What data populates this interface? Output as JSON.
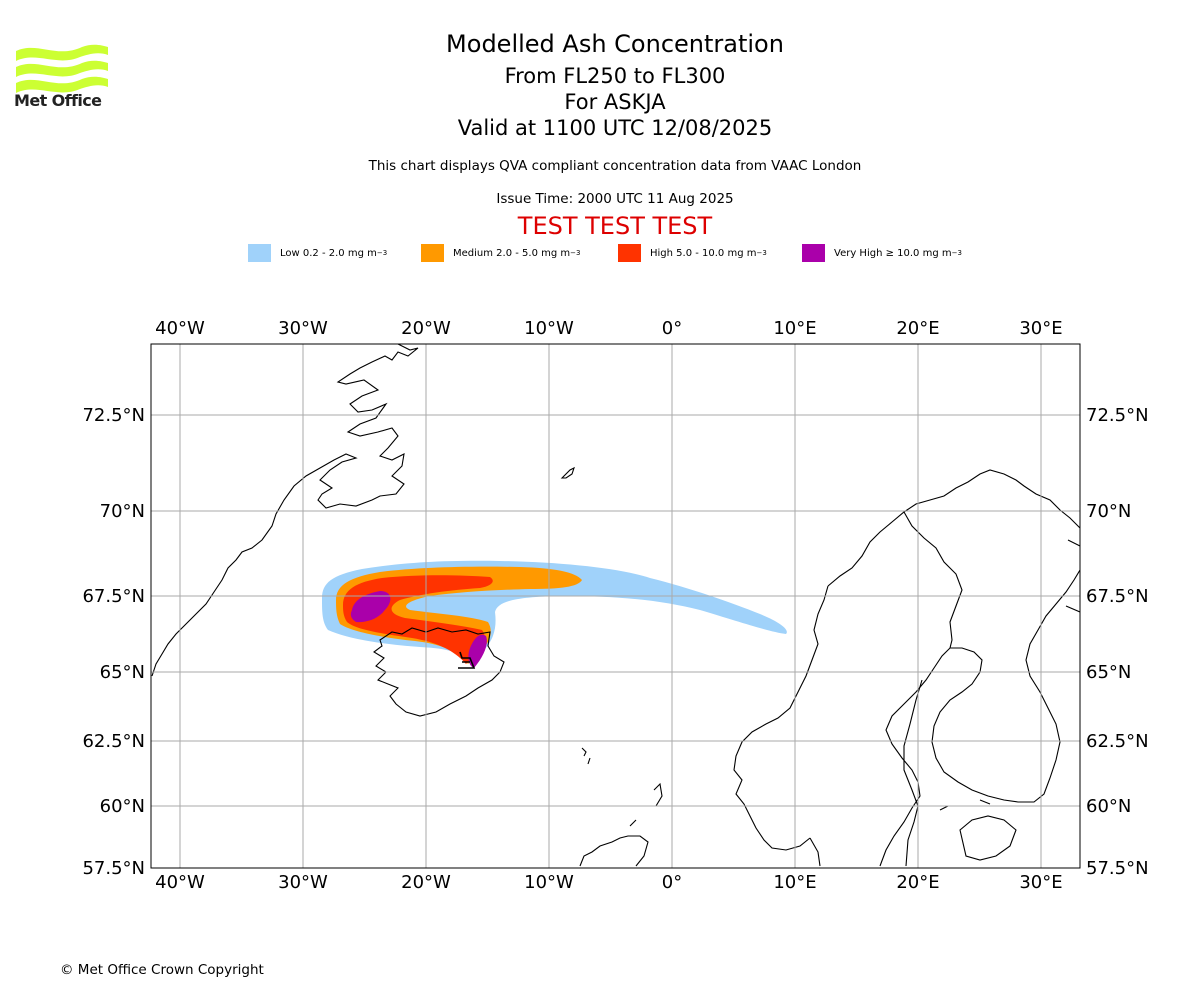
{
  "header": {
    "title": "Modelled Ash Concentration",
    "levels": "From FL250 to FL300",
    "volcano": "For ASKJA",
    "valid": "Valid at 1100 UTC 12/08/2025",
    "compliance_note": "This chart displays QVA compliant concentration data from VAAC London",
    "issue_time": "Issue Time: 2000 UTC 11 Aug 2025",
    "test_banner": "TEST TEST TEST"
  },
  "logo": {
    "text": "Met Office",
    "color": "#ccff33"
  },
  "legend": [
    {
      "label": "Low 0.2 - 2.0 mg m",
      "unit_exp": "−3",
      "color": "#a0d2fa"
    },
    {
      "label": "Medium 2.0 - 5.0 mg m",
      "unit_exp": "−3",
      "color": "#ff9900"
    },
    {
      "label": "High 5.0 - 10.0 mg m",
      "unit_exp": "−3",
      "color": "#ff3300"
    },
    {
      "label": "Very High ≥ 10.0 mg m",
      "unit_exp": "−3",
      "color": "#aa00aa"
    }
  ],
  "map": {
    "lon_range": [
      -42.5,
      33.0
    ],
    "lat_range": [
      57.5,
      74.5
    ],
    "lon_ticks": [
      {
        "value": -40,
        "label": "40°W"
      },
      {
        "value": -30,
        "label": "30°W"
      },
      {
        "value": -20,
        "label": "20°W"
      },
      {
        "value": -10,
        "label": "10°W"
      },
      {
        "value": 0,
        "label": "0°"
      },
      {
        "value": 10,
        "label": "10°E"
      },
      {
        "value": 20,
        "label": "20°E"
      },
      {
        "value": 30,
        "label": "30°E"
      }
    ],
    "lat_ticks": [
      {
        "value": 72.5,
        "label": "72.5°N"
      },
      {
        "value": 70,
        "label": "70°N"
      },
      {
        "value": 67.5,
        "label": "67.5°N"
      },
      {
        "value": 65,
        "label": "65°N"
      },
      {
        "value": 62.5,
        "label": "62.5°N"
      },
      {
        "value": 60,
        "label": "60°N"
      },
      {
        "value": 57.5,
        "label": "57.5°N"
      }
    ],
    "grid": true,
    "grid_color": "#aaaaaa"
  },
  "footer": {
    "copyright": "© Met Office Crown Copyright"
  }
}
